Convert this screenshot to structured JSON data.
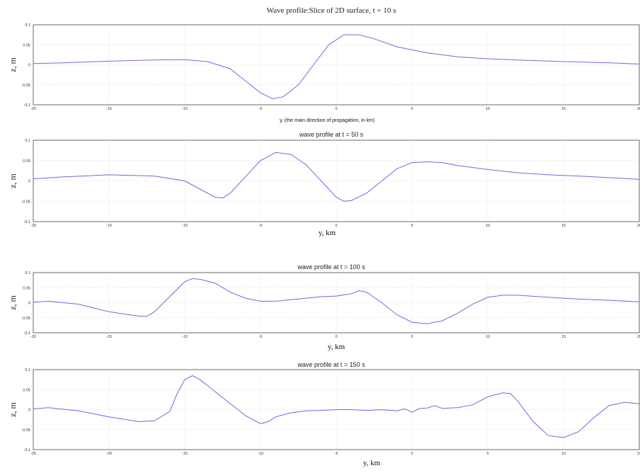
{
  "chart_data": [
    {
      "type": "line",
      "title": "Wave profile:Slice of 2D surface, t = 10 s",
      "xlabel": "y, (the main direction of propagation, in km)",
      "ylabel": "z, m",
      "xlim": [
        -20,
        20
      ],
      "ylim": [
        -0.1,
        0.1
      ],
      "xticks": [
        -20,
        -15,
        -10,
        -5,
        0,
        5,
        10,
        15,
        20
      ],
      "xtick_labels": [
        "-20",
        "-15",
        "-10",
        "-5",
        "0",
        "5",
        "10",
        "15",
        "20"
      ],
      "yticks": [
        0.1,
        0.05,
        0,
        -0.05,
        -0.1
      ],
      "ytick_labels": [
        "0.1",
        "0.05",
        "0",
        "-0.05",
        "-0.1"
      ],
      "grid": true,
      "color": "#6b6be0",
      "series": [
        {
          "x": [
            -20,
            -18,
            -15,
            -12,
            -10,
            -8.5,
            -7,
            -6,
            -5,
            -4.2,
            -3.5,
            -2.5,
            -1.5,
            -0.5,
            0.5,
            1.5,
            2.5,
            4,
            6,
            8,
            10,
            12,
            15,
            18,
            20
          ],
          "values": [
            0.003,
            0.005,
            0.009,
            0.012,
            0.013,
            0.008,
            -0.01,
            -0.04,
            -0.07,
            -0.085,
            -0.08,
            -0.05,
            0,
            0.05,
            0.075,
            0.075,
            0.065,
            0.045,
            0.03,
            0.02,
            0.015,
            0.012,
            0.008,
            0.005,
            0.002
          ]
        }
      ]
    },
    {
      "type": "line",
      "title": "wave profile at  t =  50 s",
      "xlabel": "y, km",
      "ylabel": "z, m",
      "xlim": [
        -20,
        20
      ],
      "ylim": [
        -0.1,
        0.1
      ],
      "xticks": [
        -20,
        -15,
        -10,
        -5,
        0,
        5,
        10,
        15,
        20
      ],
      "xtick_labels": [
        "-20",
        "-15",
        "-10",
        "-5",
        "0",
        "5",
        "10",
        "15",
        "20"
      ],
      "yticks": [
        0.1,
        0.05,
        0,
        -0.05,
        -0.1
      ],
      "ytick_labels": [
        "0.1",
        "0.05",
        "0",
        "-0.05",
        "-0.1"
      ],
      "grid": true,
      "color": "#6b6be0",
      "series": [
        {
          "x": [
            -20,
            -18,
            -15,
            -12,
            -10,
            -9,
            -8,
            -7.5,
            -7,
            -6,
            -5,
            -4,
            -3,
            -2,
            -1,
            0,
            0.5,
            1,
            2,
            3,
            4,
            5,
            6,
            7,
            8,
            10,
            12,
            14,
            16,
            18,
            20
          ],
          "values": [
            0.005,
            0.01,
            0.015,
            0.012,
            0,
            -0.02,
            -0.04,
            -0.042,
            -0.03,
            0.01,
            0.05,
            0.07,
            0.065,
            0.04,
            0,
            -0.04,
            -0.05,
            -0.048,
            -0.03,
            0,
            0.03,
            0.045,
            0.047,
            0.045,
            0.038,
            0.028,
            0.02,
            0.015,
            0.012,
            0.008,
            0.004
          ]
        }
      ]
    },
    {
      "type": "line",
      "title": "wave profile at  t =  100 s",
      "xlabel": "y, km",
      "ylabel": "z, m",
      "xlim": [
        -20,
        20
      ],
      "ylim": [
        -0.1,
        0.1
      ],
      "xticks": [
        -20,
        -15,
        -10,
        -5,
        0,
        5,
        10,
        15,
        20
      ],
      "xtick_labels": [
        "-20",
        "-15",
        "-10",
        "-5",
        "0",
        "5",
        "10",
        "15",
        "20"
      ],
      "yticks": [
        0.1,
        0.05,
        0,
        -0.05,
        -0.1
      ],
      "ytick_labels": [
        "0.1",
        "0.05",
        "0",
        "-0.05",
        "-0.1"
      ],
      "grid": true,
      "color": "#6b6be0",
      "series": [
        {
          "x": [
            -20,
            -19,
            -17,
            -15,
            -13,
            -12.5,
            -12,
            -11,
            -10,
            -9.5,
            -9,
            -8,
            -7,
            -6,
            -5,
            -4,
            -3,
            -2,
            -1,
            0,
            1,
            1.5,
            2,
            3,
            4,
            5,
            6,
            7,
            8,
            9,
            10,
            11,
            12,
            14,
            16,
            18,
            20
          ],
          "values": [
            0.002,
            0.005,
            -0.005,
            -0.03,
            -0.045,
            -0.045,
            -0.03,
            0.02,
            0.07,
            0.08,
            0.078,
            0.065,
            0.035,
            0.015,
            0.005,
            0.005,
            0.01,
            0.015,
            0.02,
            0.022,
            0.03,
            0.04,
            0.035,
            0,
            -0.04,
            -0.065,
            -0.07,
            -0.06,
            -0.035,
            -0.005,
            0.018,
            0.025,
            0.025,
            0.018,
            0.012,
            0.008,
            0.003
          ]
        }
      ]
    },
    {
      "type": "line",
      "title": "wave profile at  t =   150 s",
      "xlabel": "y, km",
      "ylabel": "z, m",
      "xlim": [
        -25,
        15
      ],
      "ylim": [
        -0.1,
        0.1
      ],
      "xticks": [
        -25,
        -20,
        -15,
        -10,
        -5,
        0,
        5,
        10,
        15
      ],
      "xtick_labels": [
        "-25",
        "-20",
        "-15",
        "-10",
        "-5",
        "0",
        "5",
        "10",
        "15"
      ],
      "yticks": [
        0.1,
        0.05,
        0,
        -0.05,
        -0.1
      ],
      "ytick_labels": [
        "0.1",
        "0.05",
        "0",
        "-0.05",
        "-0.1"
      ],
      "grid": true,
      "color": "#6b6be0",
      "series": [
        {
          "x": [
            -25,
            -24,
            -22,
            -20,
            -18,
            -17,
            -16,
            -15.5,
            -15,
            -14.5,
            -14,
            -13,
            -12,
            -11,
            -10,
            -9.5,
            -9,
            -8,
            -7,
            -6,
            -5,
            -4,
            -3,
            -2,
            -1,
            -0.5,
            0,
            0.5,
            1,
            1.5,
            2,
            3,
            4,
            5,
            6,
            6.5,
            7,
            8,
            9,
            10,
            11,
            12,
            13,
            14,
            15
          ],
          "values": [
            0.002,
            0.005,
            -0.003,
            -0.018,
            -0.03,
            -0.028,
            -0.005,
            0.04,
            0.075,
            0.085,
            0.075,
            0.045,
            0.015,
            -0.015,
            -0.035,
            -0.03,
            -0.018,
            -0.008,
            -0.003,
            -0.002,
            0,
            0,
            -0.002,
            0,
            -0.003,
            0.002,
            -0.006,
            0.003,
            0.004,
            0.01,
            0.003,
            0.005,
            0.012,
            0.032,
            0.042,
            0.04,
            0.02,
            -0.03,
            -0.065,
            -0.07,
            -0.055,
            -0.02,
            0.01,
            0.018,
            0.015
          ]
        }
      ]
    }
  ]
}
